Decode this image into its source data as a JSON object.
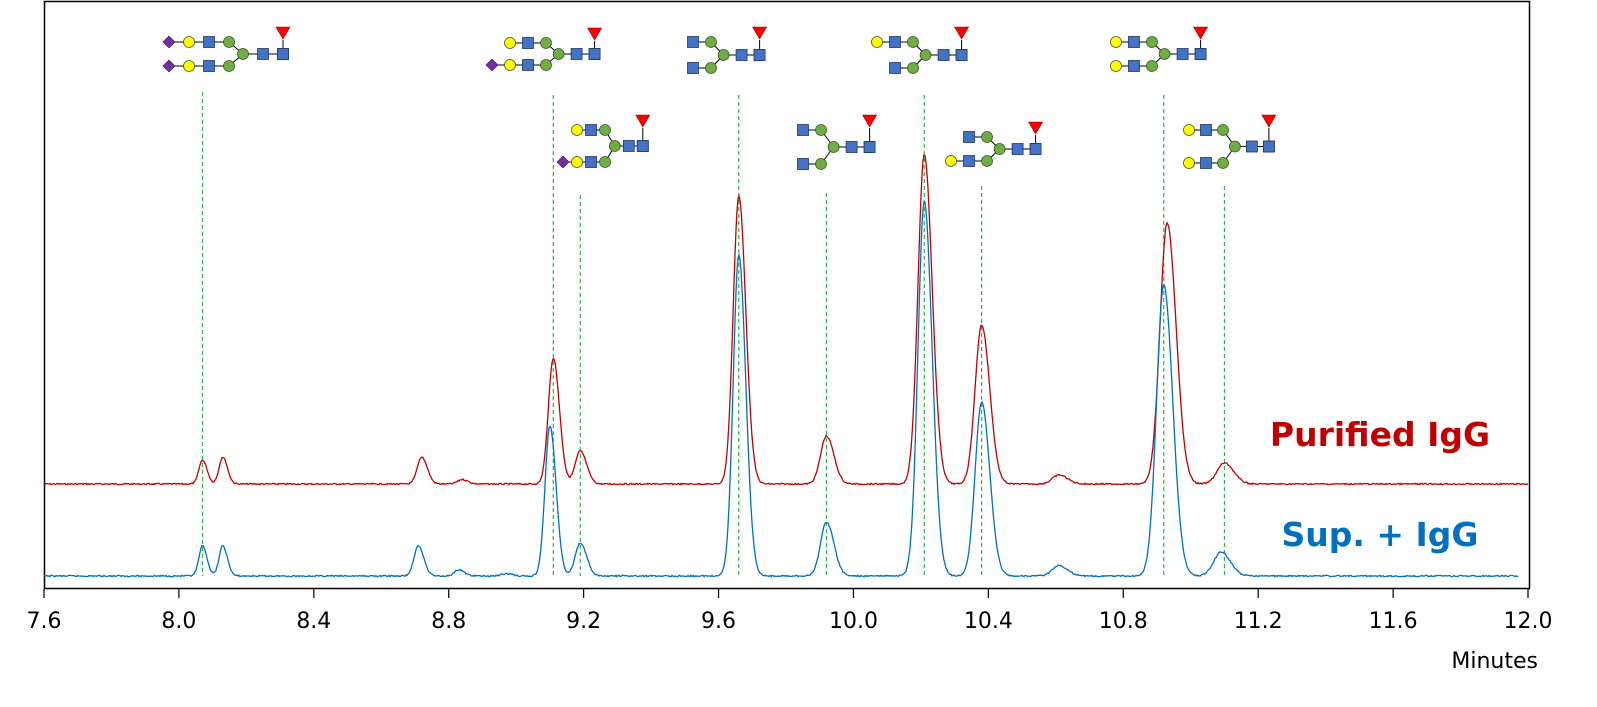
{
  "chart_data": {
    "type": "line",
    "xlabel": "Minutes",
    "ylabel": "",
    "title": "",
    "xlim": [
      7.6,
      12.0
    ],
    "x_ticks": [
      "7.6",
      "8.0",
      "8.4",
      "8.8",
      "9.2",
      "9.6",
      "10.0",
      "10.4",
      "10.8",
      "11.2",
      "11.6",
      "12.0"
    ],
    "grid": false,
    "colors": {
      "purified": "#c00000",
      "sup": "#0070c0",
      "marker_line": "#2cb24a",
      "glycan_blue": "#4472c4",
      "glycan_green": "#70ad47",
      "glycan_yellow": "#ffff00",
      "glycan_purple": "#7030a0",
      "glycan_red": "#ff0000"
    },
    "series": [
      {
        "name": "Purified IgG",
        "color": "#c00000",
        "baseline": 0,
        "peaks": [
          {
            "rt": 8.07,
            "height": 0.08
          },
          {
            "rt": 8.13,
            "height": 0.09
          },
          {
            "rt": 8.72,
            "height": 0.09
          },
          {
            "rt": 8.84,
            "height": 0.015
          },
          {
            "rt": 9.11,
            "height": 0.42
          },
          {
            "rt": 9.19,
            "height": 0.11
          },
          {
            "rt": 9.66,
            "height": 0.96
          },
          {
            "rt": 9.92,
            "height": 0.16
          },
          {
            "rt": 10.21,
            "height": 1.1
          },
          {
            "rt": 10.38,
            "height": 0.53
          },
          {
            "rt": 10.61,
            "height": 0.03
          },
          {
            "rt": 10.93,
            "height": 0.87
          },
          {
            "rt": 11.1,
            "height": 0.07
          }
        ]
      },
      {
        "name": "Sup. + IgG",
        "color": "#0070c0",
        "baseline": 0,
        "peaks": [
          {
            "rt": 8.07,
            "height": 0.1
          },
          {
            "rt": 8.13,
            "height": 0.1
          },
          {
            "rt": 8.71,
            "height": 0.1
          },
          {
            "rt": 8.83,
            "height": 0.02
          },
          {
            "rt": 8.97,
            "height": 0.008
          },
          {
            "rt": 9.1,
            "height": 0.5
          },
          {
            "rt": 9.19,
            "height": 0.11
          },
          {
            "rt": 9.66,
            "height": 1.07
          },
          {
            "rt": 9.92,
            "height": 0.18
          },
          {
            "rt": 10.21,
            "height": 1.25
          },
          {
            "rt": 10.38,
            "height": 0.58
          },
          {
            "rt": 10.61,
            "height": 0.035
          },
          {
            "rt": 10.92,
            "height": 0.97
          },
          {
            "rt": 11.09,
            "height": 0.08
          }
        ]
      }
    ],
    "markers": [
      {
        "rt": 8.07,
        "glycan": "G2FS2"
      },
      {
        "rt": 9.11,
        "glycan": "G2FS1-a"
      },
      {
        "rt": 9.19,
        "glycan": "G2FS1-b"
      },
      {
        "rt": 9.66,
        "glycan": "G0F"
      },
      {
        "rt": 9.92,
        "glycan": "G0F-N"
      },
      {
        "rt": 10.21,
        "glycan": "G1F-a"
      },
      {
        "rt": 10.38,
        "glycan": "G1F-b"
      },
      {
        "rt": 10.92,
        "glycan": "G2F"
      },
      {
        "rt": 11.1,
        "glycan": "G2F-b"
      }
    ]
  }
}
